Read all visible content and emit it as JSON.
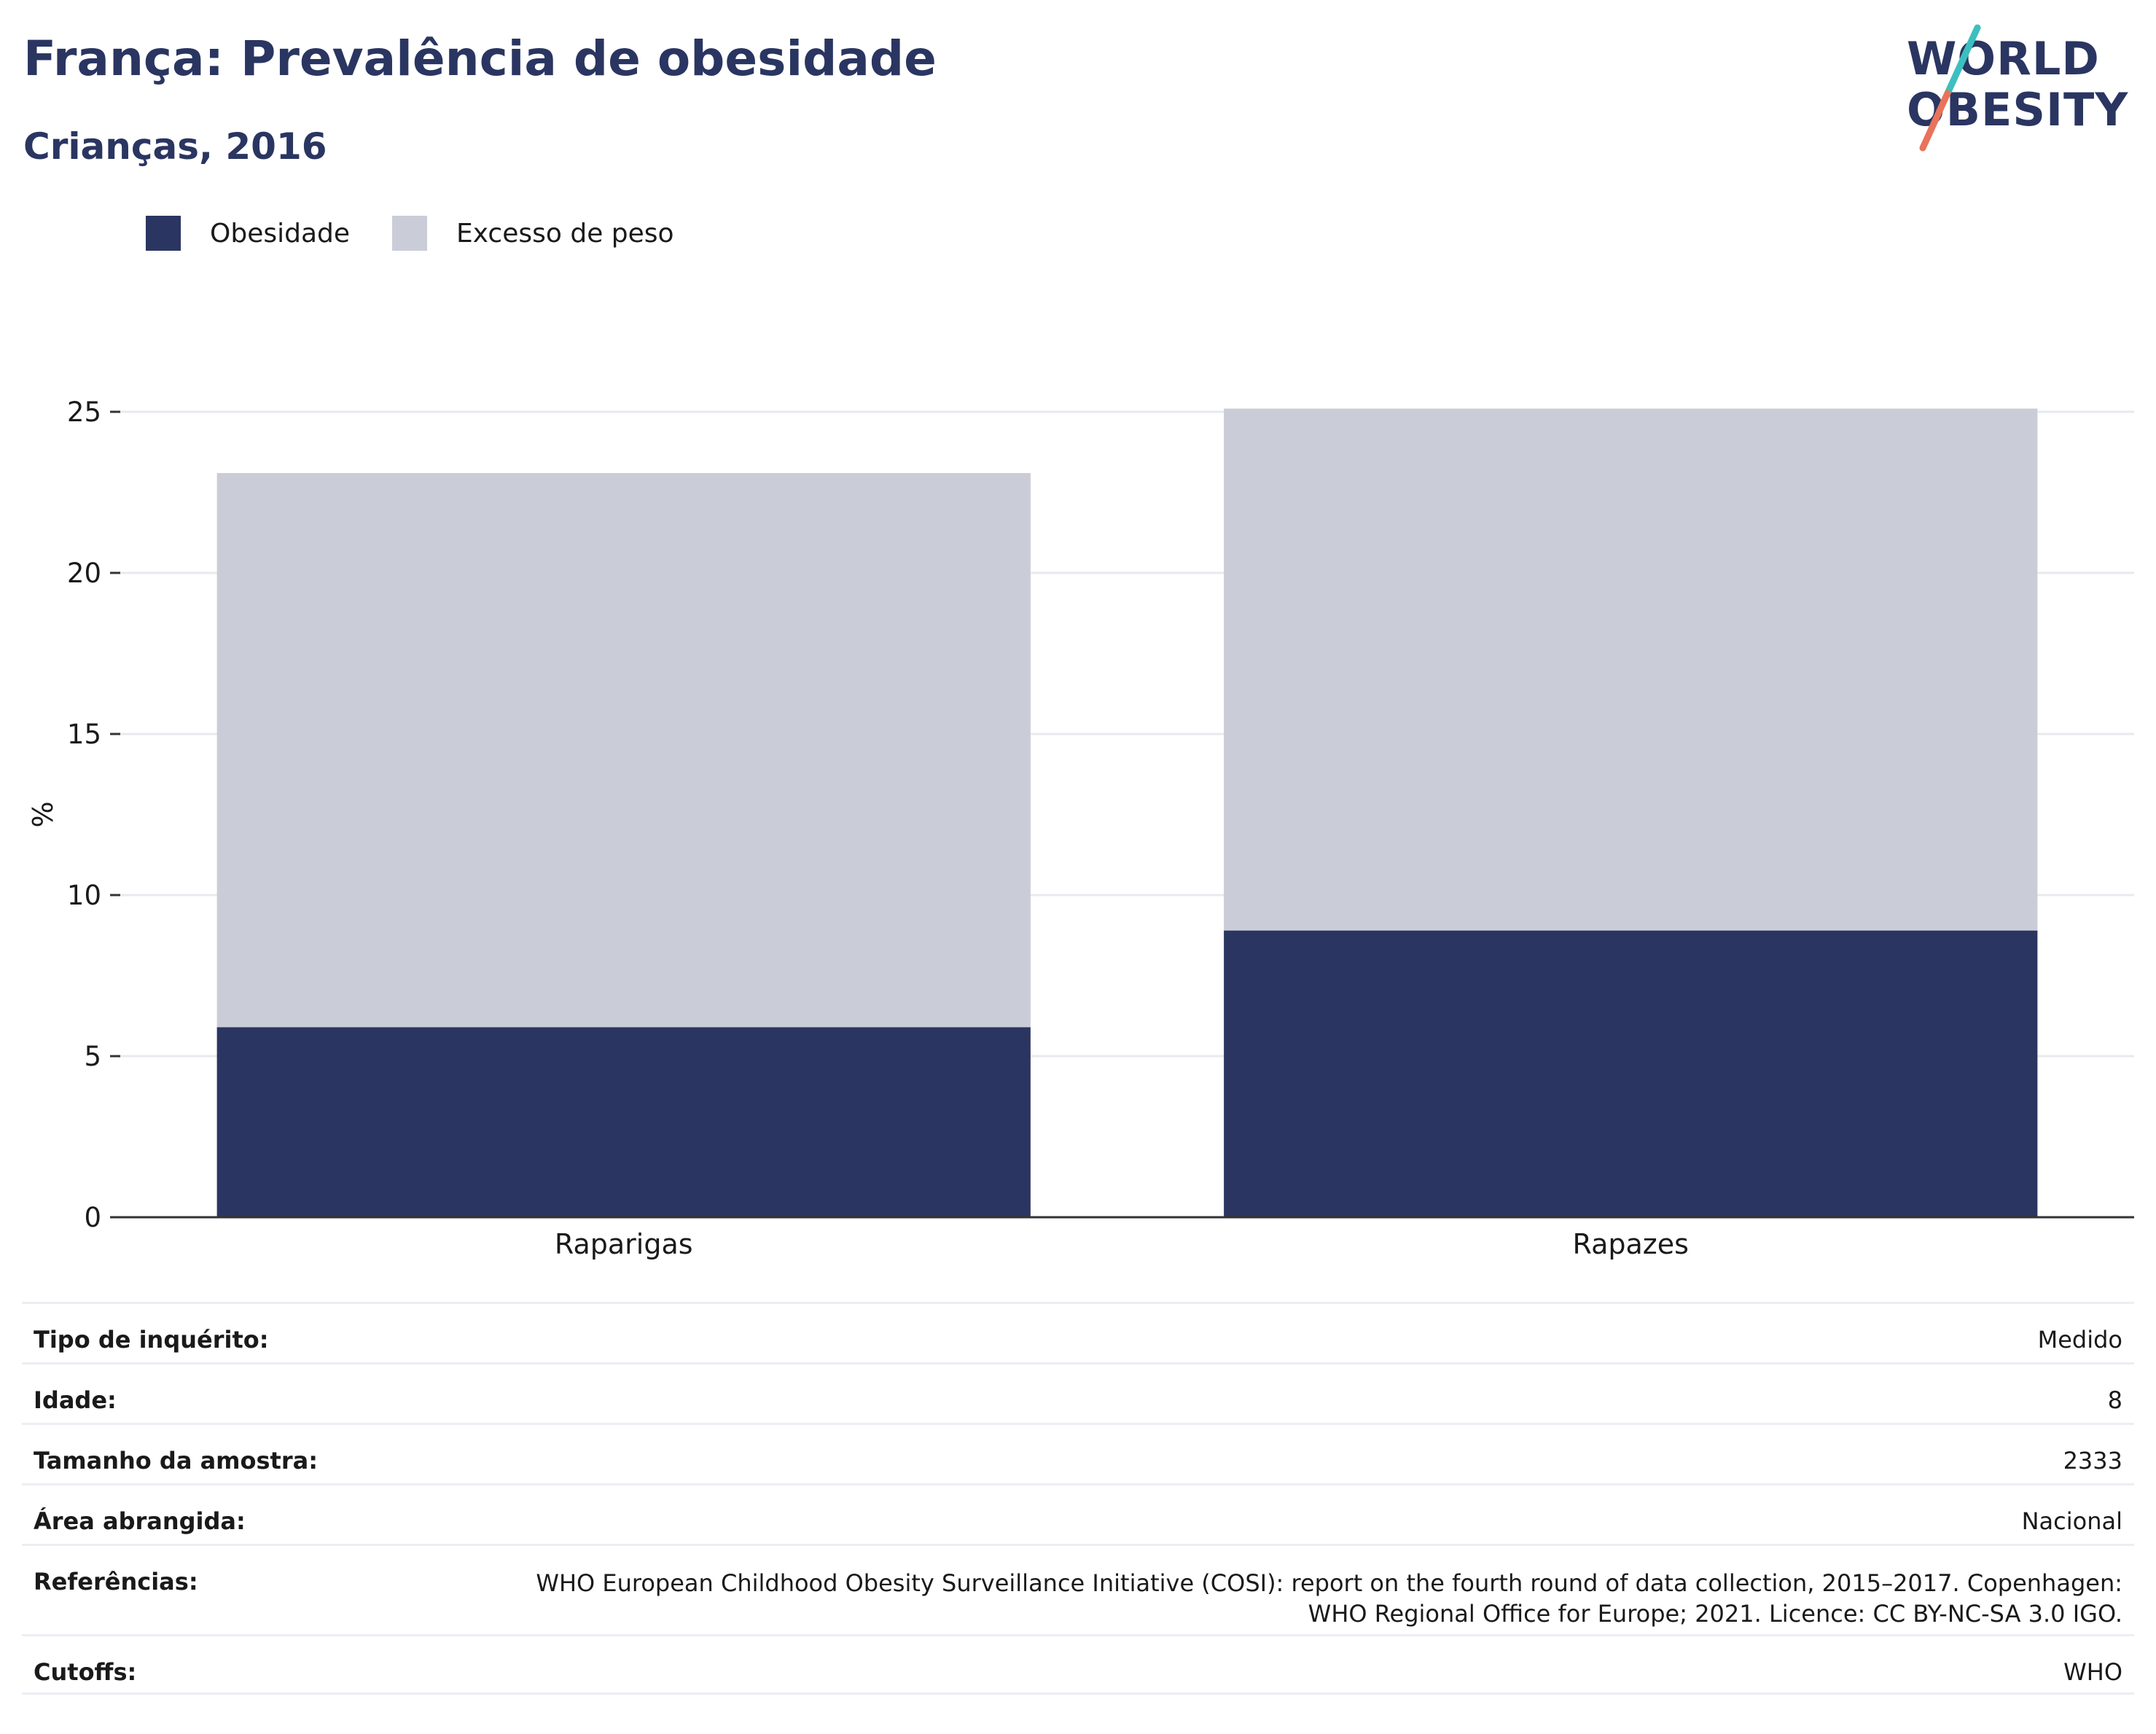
{
  "title": "França: Prevalência de obesidade",
  "subtitle": "Crianças, 2016",
  "logo": {
    "line1": "WORLD",
    "line2": "OBESITY",
    "colors": {
      "slash_top": "#3dbfbf",
      "slash_bottom": "#e8735a"
    }
  },
  "colors": {
    "obesity": "#2a3561",
    "overweight": "#cacdd8",
    "grid": "#e8eaf0",
    "axis": "#333333"
  },
  "legend": [
    {
      "label": "Obesidade",
      "color": "#2a3561"
    },
    {
      "label": "Excesso de peso",
      "color": "#cacdd8"
    }
  ],
  "chart_data": {
    "type": "bar",
    "stacked": true,
    "categories": [
      "Raparigas",
      "Rapazes"
    ],
    "series": [
      {
        "name": "Obesidade",
        "values": [
          5.9,
          8.9
        ]
      },
      {
        "name": "Excesso de peso",
        "values": [
          17.2,
          16.2
        ]
      }
    ],
    "ylabel": "%",
    "ylim": [
      0,
      25
    ],
    "yticks": [
      0,
      5,
      10,
      15,
      20,
      25
    ],
    "grid": true,
    "legend_position": "top-left"
  },
  "info": {
    "rows": [
      {
        "label": "Tipo de inquérito:",
        "value": "Medido"
      },
      {
        "label": "Idade:",
        "value": "8"
      },
      {
        "label": "Tamanho da amostra:",
        "value": "2333"
      },
      {
        "label": "Área abrangida:",
        "value": "Nacional"
      },
      {
        "label": "Referências:",
        "value_lines": [
          "WHO European Childhood Obesity Surveillance Initiative (COSI): report on the fourth round of data collection, 2015–2017. Copenhagen:",
          "WHO Regional Office for Europe; 2021. Licence: CC BY-NC-SA 3.0 IGO."
        ]
      },
      {
        "label": "Cutoffs:",
        "value": "WHO"
      }
    ]
  }
}
